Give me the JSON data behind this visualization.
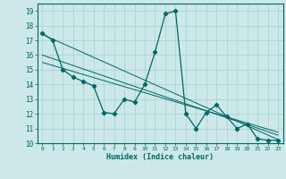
{
  "xlabel": "Humidex (Indice chaleur)",
  "bg_color": "#cce8e8",
  "grid_color": "#aad4d4",
  "line_color": "#006666",
  "xlim": [
    -0.5,
    23.5
  ],
  "ylim": [
    10,
    19.5
  ],
  "yticks": [
    10,
    11,
    12,
    13,
    14,
    15,
    16,
    17,
    18,
    19
  ],
  "xticks": [
    0,
    1,
    2,
    3,
    4,
    5,
    6,
    7,
    8,
    9,
    10,
    11,
    12,
    13,
    14,
    15,
    16,
    17,
    18,
    19,
    20,
    21,
    22,
    23
  ],
  "main_series": [
    17.5,
    17.0,
    15.0,
    14.5,
    14.2,
    13.9,
    12.1,
    12.0,
    13.0,
    12.8,
    14.0,
    16.2,
    18.8,
    19.0,
    12.0,
    11.0,
    12.1,
    12.6,
    11.8,
    11.0,
    11.3,
    10.3,
    10.2,
    10.2
  ],
  "trend_lines": [
    [
      [
        0,
        23
      ],
      [
        17.4,
        10.25
      ]
    ],
    [
      [
        0,
        23
      ],
      [
        16.0,
        10.55
      ]
    ],
    [
      [
        0,
        23
      ],
      [
        15.5,
        10.75
      ]
    ]
  ]
}
